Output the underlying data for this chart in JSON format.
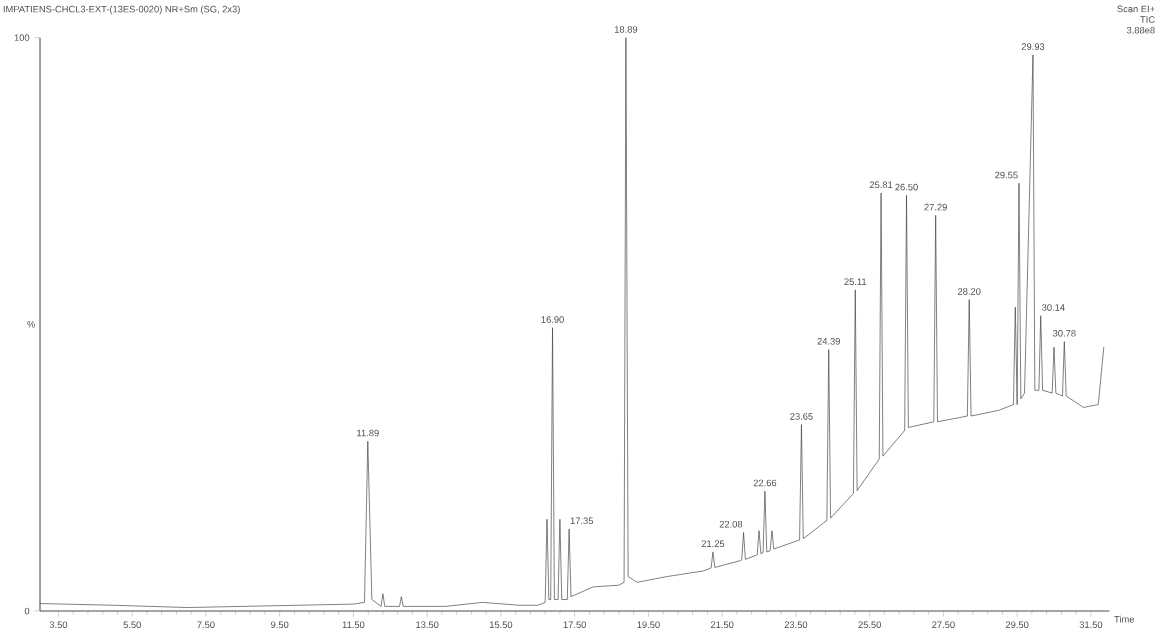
{
  "chart_data": {
    "type": "line",
    "title": "IMPATIENS-CHCL3-EXT-(13ES-0020) NR+Sm (SG, 2x3)",
    "xlabel": "Time",
    "ylabel": "%",
    "xlim": [
      3.0,
      32.0
    ],
    "ylim": [
      0,
      100
    ],
    "yticks": [
      0,
      100
    ],
    "xticks": [
      {
        "value": 3.5,
        "label": "3.50"
      },
      {
        "value": 5.5,
        "label": "5.50"
      },
      {
        "value": 7.5,
        "label": "7.50"
      },
      {
        "value": 9.5,
        "label": "9.50"
      },
      {
        "value": 11.5,
        "label": "11.50"
      },
      {
        "value": 13.5,
        "label": "13.50"
      },
      {
        "value": 15.5,
        "label": "15.50"
      },
      {
        "value": 17.5,
        "label": "17.50"
      },
      {
        "value": 19.5,
        "label": "19.50"
      },
      {
        "value": 21.5,
        "label": "21.50"
      },
      {
        "value": 23.5,
        "label": "23.50"
      },
      {
        "value": 25.5,
        "label": "25.50"
      },
      {
        "value": 27.5,
        "label": "27.50"
      },
      {
        "value": 29.5,
        "label": "29.50"
      },
      {
        "value": 31.5,
        "label": "31.50"
      }
    ],
    "marker": "none",
    "line_style": "solid",
    "series": [
      {
        "color": "#404040",
        "x": [
          3.0,
          5.0,
          7.0,
          10.0,
          11.5,
          11.8,
          11.89,
          12.0,
          12.25,
          12.3,
          12.35,
          12.75,
          12.8,
          12.85,
          14.0,
          15.0,
          16.0,
          16.5,
          16.7,
          16.75,
          16.8,
          16.85,
          16.9,
          16.95,
          17.05,
          17.1,
          17.15,
          17.3,
          17.35,
          17.4,
          18.0,
          18.7,
          18.84,
          18.89,
          18.95,
          19.2,
          20.0,
          21.0,
          21.2,
          21.25,
          21.3,
          22.0,
          22.03,
          22.08,
          22.13,
          22.45,
          22.5,
          22.55,
          22.61,
          22.66,
          22.71,
          22.8,
          22.85,
          22.9,
          23.6,
          23.65,
          23.7,
          24.34,
          24.39,
          24.44,
          25.06,
          25.11,
          25.16,
          25.76,
          25.81,
          25.86,
          26.45,
          26.5,
          26.55,
          27.24,
          27.29,
          27.34,
          28.15,
          28.2,
          28.25,
          29.0,
          29.4,
          29.45,
          29.5,
          29.55,
          29.6,
          29.7,
          29.93,
          29.98,
          30.09,
          30.14,
          30.19,
          30.45,
          30.5,
          30.55,
          30.73,
          30.78,
          30.83,
          31.3,
          31.7,
          31.85
        ],
        "values": [
          1.3,
          1.0,
          0.6,
          1.0,
          1.2,
          1.5,
          29.6,
          2.0,
          0.8,
          3.0,
          0.8,
          0.8,
          2.5,
          0.8,
          0.8,
          1.5,
          1.0,
          1.0,
          1.5,
          16,
          2.0,
          2.0,
          49.4,
          2.0,
          2.0,
          16,
          2.0,
          2.0,
          14.3,
          2.5,
          4.2,
          4.5,
          5.0,
          100,
          6.0,
          5.0,
          6.0,
          7.0,
          7.5,
          10.3,
          7.6,
          8.8,
          8.9,
          13.7,
          9.0,
          9.8,
          14,
          10,
          10.2,
          20.9,
          10.3,
          10.5,
          14,
          10.8,
          12.4,
          32.5,
          12.6,
          15.8,
          45.6,
          16.2,
          20.5,
          56,
          21,
          26.5,
          72.9,
          27,
          31.5,
          72.5,
          32,
          33,
          69,
          33,
          34,
          54.3,
          34,
          35,
          36,
          53,
          36,
          74.6,
          37,
          38,
          97,
          38.5,
          38.5,
          51.5,
          38.5,
          38,
          46,
          38,
          37.5,
          47,
          37.5,
          35.5,
          36,
          46
        ]
      }
    ],
    "annotations": [
      "Scan EI+",
      "TIC",
      "3.88e8",
      {
        "text": "11.89",
        "x": 11.89,
        "y": 29.6
      },
      {
        "text": "16.90",
        "x": 16.9,
        "y": 49.4
      },
      {
        "text": "17.35",
        "x": 17.35,
        "y": 14.3
      },
      {
        "text": "18.89",
        "x": 18.89,
        "y": 100
      },
      {
        "text": "21.25",
        "x": 21.25,
        "y": 10.3
      },
      {
        "text": "22.08",
        "x": 22.08,
        "y": 13.7
      },
      {
        "text": "22.66",
        "x": 22.66,
        "y": 20.9
      },
      {
        "text": "23.65",
        "x": 23.65,
        "y": 32.5
      },
      {
        "text": "24.39",
        "x": 24.39,
        "y": 45.6
      },
      {
        "text": "25.11",
        "x": 25.11,
        "y": 56
      },
      {
        "text": "25.81",
        "x": 25.81,
        "y": 72.9
      },
      {
        "text": "26.50",
        "x": 26.5,
        "y": 72.5
      },
      {
        "text": "27.29",
        "x": 27.29,
        "y": 69
      },
      {
        "text": "28.20",
        "x": 28.2,
        "y": 54.3
      },
      {
        "text": "29.55",
        "x": 29.55,
        "y": 74.6
      },
      {
        "text": "29.93",
        "x": 29.93,
        "y": 97
      },
      {
        "text": "30.14",
        "x": 30.14,
        "y": 51.5
      },
      {
        "text": "30.78",
        "x": 30.78,
        "y": 47
      }
    ]
  }
}
